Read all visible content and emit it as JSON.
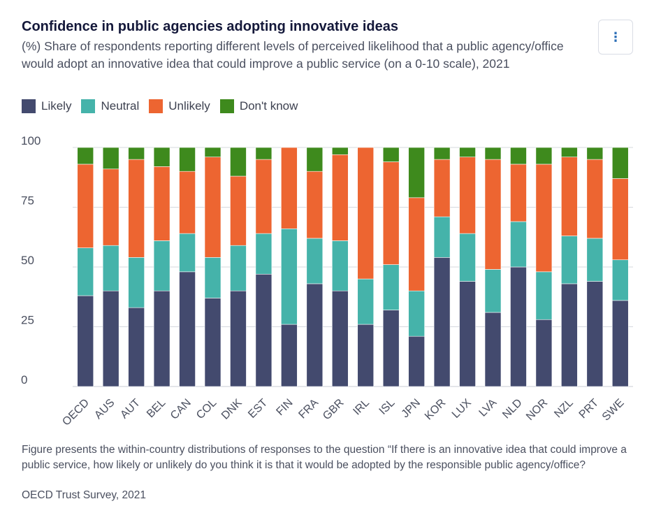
{
  "header": {
    "title": "Confidence in public agencies adopting innovative ideas",
    "subtitle": "(%) Share of respondents reporting different levels of perceived likelihood that a public agency/office would adopt an innovative idea that could improve a public service (on a 0-10 scale), 2021",
    "menu_icon": "vertical-ellipsis-icon",
    "menu_glyph": "⋮"
  },
  "footer": {
    "note": "Figure presents the within-country distributions of responses to the question “If there is an innovative idea that could improve a public service, how likely or unlikely do you think it is that it would be adopted by the responsible public agency/office?",
    "source": "OECD Trust Survey, 2021"
  },
  "chart_data": {
    "type": "stacked-bar",
    "title": "Confidence in public agencies adopting innovative ideas",
    "ylim": [
      0,
      100
    ],
    "yticks": [
      0,
      25,
      50,
      75,
      100
    ],
    "grid": true,
    "legend_position": "top-left",
    "categories": [
      "OECD",
      "AUS",
      "AUT",
      "BEL",
      "CAN",
      "COL",
      "DNK",
      "EST",
      "FIN",
      "FRA",
      "GBR",
      "IRL",
      "ISL",
      "JPN",
      "KOR",
      "LUX",
      "LVA",
      "NLD",
      "NOR",
      "NZL",
      "PRT",
      "SWE"
    ],
    "series": [
      {
        "name": "Likely",
        "color": "#434a6e",
        "values": [
          38,
          40,
          33,
          40,
          48,
          37,
          40,
          47,
          26,
          43,
          40,
          26,
          32,
          21,
          54,
          44,
          31,
          50,
          28,
          43,
          44,
          36
        ]
      },
      {
        "name": "Neutral",
        "color": "#45b3aa",
        "values": [
          20,
          19,
          21,
          21,
          16,
          17,
          19,
          17,
          40,
          19,
          21,
          19,
          19,
          19,
          17,
          20,
          18,
          19,
          20,
          20,
          18,
          17
        ]
      },
      {
        "name": "Unlikely",
        "color": "#ed6531",
        "values": [
          35,
          32,
          41,
          31,
          26,
          42,
          29,
          31,
          34,
          28,
          36,
          55,
          43,
          39,
          24,
          32,
          46,
          24,
          45,
          33,
          33,
          34
        ]
      },
      {
        "name": "Don't know",
        "color": "#3e8a1d",
        "values": [
          7,
          9,
          5,
          8,
          10,
          4,
          12,
          5,
          0,
          10,
          3,
          0,
          6,
          21,
          5,
          4,
          5,
          7,
          7,
          4,
          5,
          13
        ]
      }
    ]
  }
}
